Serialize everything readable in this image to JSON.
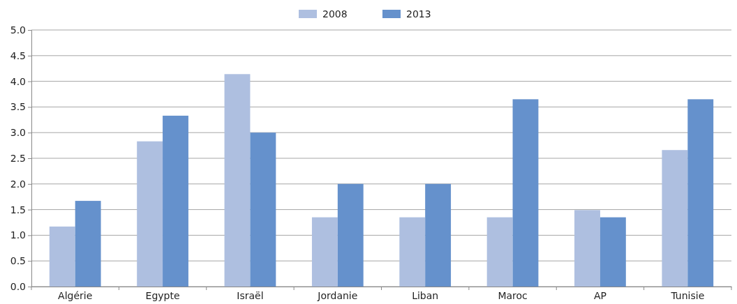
{
  "chart_data": {
    "type": "bar",
    "categories": [
      "Algérie",
      "Egypte",
      "Israël",
      "Jordanie",
      "Liban",
      "Maroc",
      "AP",
      "Tunisie"
    ],
    "series": [
      {
        "name": "2008",
        "color": "#aebfe0",
        "values": [
          1.17,
          2.83,
          4.14,
          1.35,
          1.35,
          1.35,
          1.49,
          2.66
        ]
      },
      {
        "name": "2013",
        "color": "#6591cc",
        "values": [
          1.67,
          3.33,
          3.0,
          2.0,
          2.0,
          3.65,
          1.35,
          3.65
        ]
      }
    ],
    "ylim": [
      0,
      5
    ],
    "yticks": [
      {
        "value": 0,
        "label": "0.0"
      },
      {
        "value": 0.5,
        "label": "0.5"
      },
      {
        "value": 1,
        "label": "1.0"
      },
      {
        "value": 1.5,
        "label": "1.5"
      },
      {
        "value": 2,
        "label": "2.0"
      },
      {
        "value": 2.5,
        "label": "2.5"
      },
      {
        "value": 3,
        "label": "3.0"
      },
      {
        "value": 3.5,
        "label": "3.5"
      },
      {
        "value": 4,
        "label": "4.0"
      },
      {
        "value": 4.5,
        "label": "4.5"
      },
      {
        "value": 5,
        "label": "5.0"
      }
    ],
    "grid": "y",
    "legend": "top"
  }
}
